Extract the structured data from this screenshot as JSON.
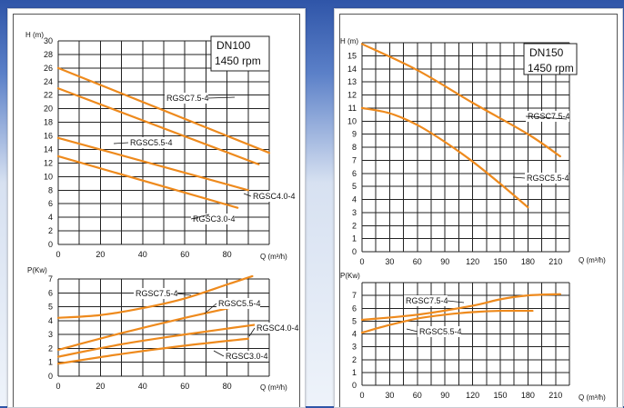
{
  "colors": {
    "curve": "#ee8a1d",
    "grid": "#222222",
    "background_top": "#2f55a8"
  },
  "chart_data": [
    {
      "id": "dn100-head",
      "type": "line",
      "ylabel": "H (m)",
      "xlabel": "Q (m³/h)",
      "info": [
        "DN100",
        "1450 rpm"
      ],
      "xlim": [
        0,
        100
      ],
      "ylim": [
        0,
        30
      ],
      "xticks": [
        0,
        20,
        40,
        60,
        80
      ],
      "yticks": [
        0,
        2,
        4,
        6,
        8,
        10,
        12,
        14,
        16,
        18,
        20,
        22,
        24,
        26,
        28,
        30
      ],
      "series": [
        {
          "name": "RGSC7.5-4",
          "x": [
            0,
            100
          ],
          "y": [
            26,
            13.5
          ]
        },
        {
          "name": "RGSC5.5-4",
          "x": [
            0,
            95
          ],
          "y": [
            23,
            11.8
          ]
        },
        {
          "name": "RGSC4.0-4",
          "x": [
            0,
            90
          ],
          "y": [
            15.7,
            8
          ]
        },
        {
          "name": "RGSC3.0-4",
          "x": [
            0,
            85
          ],
          "y": [
            13,
            5.4
          ]
        }
      ]
    },
    {
      "id": "dn100-power",
      "type": "line",
      "ylabel": "P(Kw)",
      "xlabel": "Q (m³/h)",
      "xlim": [
        0,
        100
      ],
      "ylim": [
        0,
        7
      ],
      "xticks": [
        0,
        20,
        40,
        60,
        80
      ],
      "yticks": [
        0,
        1,
        2,
        3,
        4,
        5,
        6,
        7
      ],
      "series": [
        {
          "name": "RGSC7.5-4",
          "x": [
            0,
            20,
            40,
            60,
            80,
            92
          ],
          "y": [
            4.2,
            4.4,
            4.9,
            5.6,
            6.6,
            7.2
          ]
        },
        {
          "name": "RGSC5.5-4",
          "x": [
            0,
            30,
            60,
            90
          ],
          "y": [
            1.9,
            3.1,
            4.2,
            5.2
          ]
        },
        {
          "name": "RGSC4.0-4",
          "x": [
            0,
            30,
            60,
            98
          ],
          "y": [
            1.4,
            2.3,
            3.0,
            3.8
          ]
        },
        {
          "name": "RGSC3.0-4",
          "x": [
            0,
            30,
            60,
            90
          ],
          "y": [
            0.9,
            1.6,
            2.2,
            2.7
          ]
        }
      ]
    },
    {
      "id": "dn150-head",
      "type": "line",
      "ylabel": "H (m)",
      "xlabel": "Q (m³/h)",
      "info": [
        "DN150",
        "1450 rpm"
      ],
      "xlim": [
        0,
        225
      ],
      "ylim": [
        0,
        16
      ],
      "xticks": [
        0,
        30,
        60,
        90,
        120,
        150,
        180,
        210
      ],
      "yticks": [
        0,
        1,
        2,
        3,
        4,
        5,
        6,
        7,
        8,
        9,
        10,
        11,
        12,
        13,
        14,
        15
      ],
      "series": [
        {
          "name": "RGSC7.5-4",
          "x": [
            0,
            60,
            120,
            180,
            215
          ],
          "y": [
            15.9,
            13.9,
            11.4,
            9.0,
            7.3
          ]
        },
        {
          "name": "RGSC5.5-4",
          "x": [
            0,
            30,
            60,
            90,
            120,
            150,
            180
          ],
          "y": [
            11,
            10.6,
            9.7,
            8.4,
            6.9,
            5.2,
            3.4
          ]
        }
      ]
    },
    {
      "id": "dn150-power",
      "type": "line",
      "ylabel": "P(Kw)",
      "xlabel": "Q (m³/h)",
      "xlim": [
        0,
        225
      ],
      "ylim": [
        0,
        8
      ],
      "xticks": [
        0,
        30,
        60,
        90,
        120,
        150,
        180,
        210
      ],
      "yticks": [
        0,
        1,
        2,
        3,
        4,
        5,
        6,
        7
      ],
      "series": [
        {
          "name": "RGSC7.5-4",
          "x": [
            0,
            60,
            120,
            150,
            180,
            215
          ],
          "y": [
            5.1,
            5.5,
            6.2,
            6.7,
            7.0,
            7.1
          ]
        },
        {
          "name": "RGSC5.5-4",
          "x": [
            0,
            30,
            60,
            90,
            120,
            150,
            185
          ],
          "y": [
            4.1,
            4.7,
            5.2,
            5.5,
            5.7,
            5.8,
            5.8
          ]
        }
      ]
    }
  ]
}
